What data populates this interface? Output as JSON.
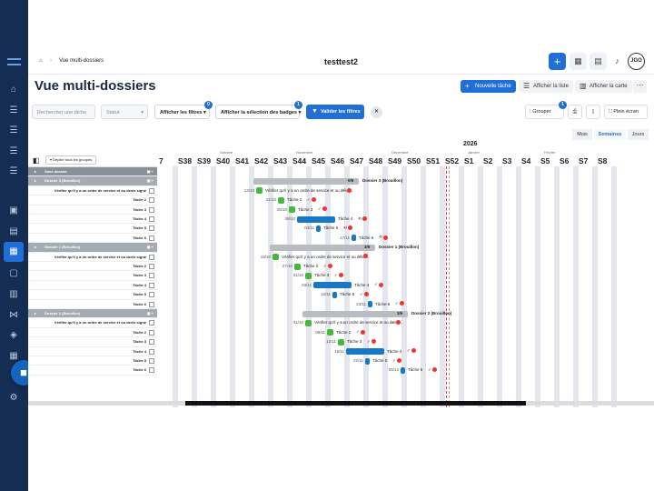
{
  "breadcrumb": {
    "home_icon": "home-icon",
    "page": "Vue multi-dossiers"
  },
  "topbar": {
    "title": "testtest2",
    "avatar": "JGO",
    "add_icon": "plus-icon",
    "calendar_icon": "calendar-icon",
    "grid_icon": "grid-icon",
    "bell_icon": "bell-icon"
  },
  "page_title": "Vue multi-dossiers",
  "actions": {
    "new_task": "Nouvelle tâche",
    "show_list": "Afficher la liste",
    "show_map": "Afficher la carte",
    "more": "···"
  },
  "filters": {
    "search_placeholder": "Rechercher une tâche",
    "status_placeholder": "Statut",
    "show_filters": "Afficher les filtres",
    "filters_count": "0",
    "badges": "Afficher la sélection des badges",
    "badges_count": "1",
    "validate": "Valider les filtres"
  },
  "right_tools": {
    "group": "Grouper",
    "group_count": "1",
    "fullscreen": "Plein écran"
  },
  "view_modes": {
    "month": "Mois",
    "weeks": "Semaines",
    "days": "Jours",
    "active": "Semaines"
  },
  "gantt": {
    "unfold_label": "Déplier tous les groupes",
    "year": "2026",
    "months": [
      {
        "label": "Octobre",
        "week": "S40"
      },
      {
        "label": "Novembre",
        "week": "S44"
      },
      {
        "label": "Décembre",
        "week": "S49"
      },
      {
        "label": "Janvier",
        "week": "S1"
      },
      {
        "label": "Février",
        "week": "S5"
      }
    ],
    "weeks": [
      "7",
      "S38",
      "S39",
      "S40",
      "S41",
      "S42",
      "S43",
      "S44",
      "S45",
      "S46",
      "S47",
      "S48",
      "S49",
      "S50",
      "S51",
      "S52",
      "S1",
      "S2",
      "S3",
      "S4",
      "S5",
      "S6",
      "S7",
      "S8"
    ],
    "groups": [
      {
        "label": "Sans dossier",
        "rows": []
      },
      {
        "label": "Dossier 3 (Brouillon)",
        "bar_label": "Dossier 3 (Brouillon)",
        "progress": "0/6",
        "rows": [
          {
            "label": "Vérifier qu'il y a un ordre de service et ou devis signé",
            "date": "13/10",
            "bar_text": "Vérifier qu'il y a un ordre de service et ou devis..."
          },
          {
            "label": "Tâche 2",
            "date": "21/10",
            "bar_text": "Tâche 2"
          },
          {
            "label": "Tâche 3",
            "date": "25/10",
            "bar_text": "Tâche 3"
          },
          {
            "label": "Tâche 4",
            "date": "28/10",
            "bar_text": "Tâche 4"
          },
          {
            "label": "Tâche 5",
            "date": "04/11",
            "bar_text": "Tâche 5"
          },
          {
            "label": "Tâche 6",
            "date": "17/11",
            "bar_text": "Tâche 6"
          }
        ]
      },
      {
        "label": "Dossier 1 (Brouillon)",
        "bar_label": "Dossier 1 (Brouillon)",
        "progress": "3/6",
        "rows": [
          {
            "label": "Vérifier qu'il y a un ordre de service et ou devis signé",
            "date": "19/10",
            "bar_text": "Vérifier qu'il y a un ordre de service et ou devis..."
          },
          {
            "label": "Tâche 2",
            "date": "27/10",
            "bar_text": "Tâche 2"
          },
          {
            "label": "Tâche 3",
            "date": "31/10",
            "bar_text": "Tâche 3"
          },
          {
            "label": "Tâche 4",
            "date": "03/11",
            "bar_text": "Tâche 4"
          },
          {
            "label": "Tâche 5",
            "date": "10/11",
            "bar_text": "Tâche 5"
          },
          {
            "label": "Tâche 6",
            "date": "23/11",
            "bar_text": "Tâche 6"
          }
        ]
      },
      {
        "label": "Dossier 2 (Brouillon)",
        "bar_label": "Dossier 2 (Brouillon)",
        "progress": "3/6",
        "rows": [
          {
            "label": "Vérifier qu'il y a un ordre de service et ou devis signé",
            "date": "31/10",
            "bar_text": "Vérifier qu'il y a un ordre de service et ou devis..."
          },
          {
            "label": "Tâche 2",
            "date": "08/11",
            "bar_text": "Tâche 2"
          },
          {
            "label": "Tâche 3",
            "date": "12/11",
            "bar_text": "Tâche 3"
          },
          {
            "label": "Tâche 4",
            "date": "15/11",
            "bar_text": "Tâche 4"
          },
          {
            "label": "Tâche 5",
            "date": "22/11",
            "bar_text": "Tâche 5"
          },
          {
            "label": "Tâche 6",
            "date": "05/12",
            "bar_text": "Tâche 6"
          }
        ]
      }
    ]
  },
  "colors": {
    "primary": "#1f6fd6",
    "sidebar": "#152d52",
    "task_red": "#c00000",
    "task_blue": "#1778c8",
    "task_green": "#46b83c"
  }
}
